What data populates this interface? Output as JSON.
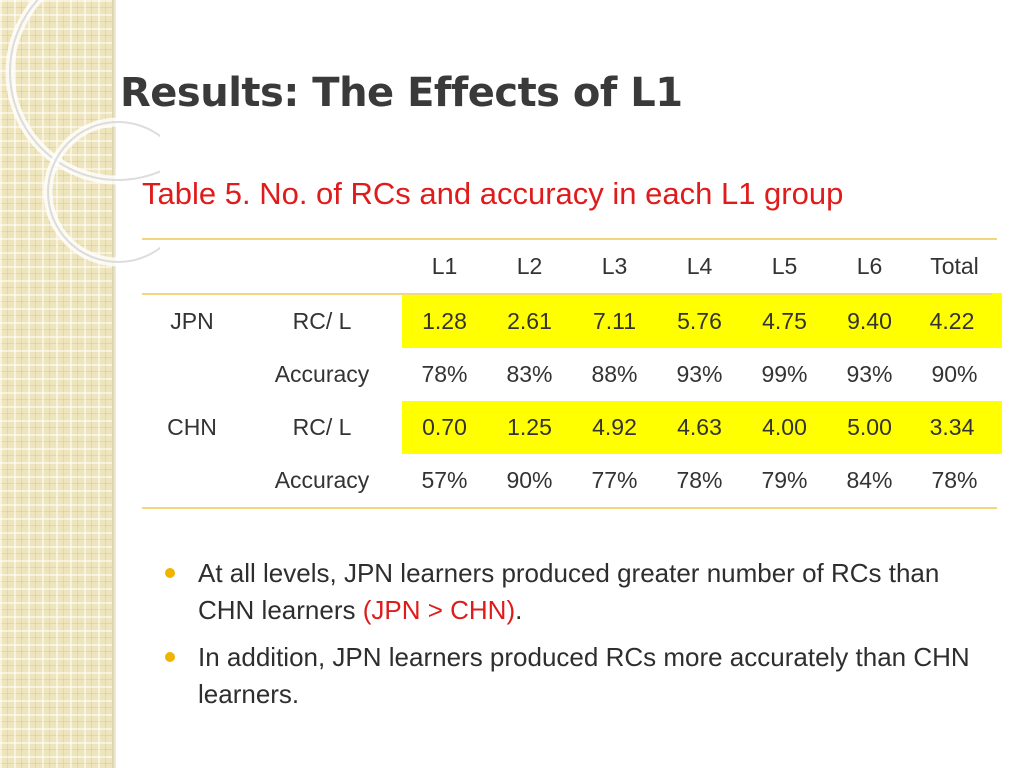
{
  "title": "Results: The Effects of L1",
  "table": {
    "caption": "Table 5. No. of RCs and accuracy in each L1 group",
    "headers": [
      "",
      "",
      "L1",
      "L2",
      "L3",
      "L4",
      "L5",
      "L6",
      "Total"
    ],
    "rows": [
      {
        "group": "JPN",
        "measure": "RC/ L",
        "values": [
          "1.28",
          "2.61",
          "7.11",
          "5.76",
          "4.75",
          "9.40",
          "4.22"
        ],
        "highlight": true
      },
      {
        "group": "",
        "measure": "Accuracy",
        "values": [
          "78%",
          "83%",
          "88%",
          "93%",
          "99%",
          "93%",
          "90%"
        ],
        "highlight": false
      },
      {
        "group": "CHN",
        "measure": "RC/ L",
        "values": [
          "0.70",
          "1.25",
          "4.92",
          "4.63",
          "4.00",
          "5.00",
          "3.34"
        ],
        "highlight": true
      },
      {
        "group": "",
        "measure": "Accuracy",
        "values": [
          "57%",
          "90%",
          "77%",
          "78%",
          "79%",
          "84%",
          "78%"
        ],
        "highlight": false
      }
    ]
  },
  "bullets": [
    {
      "text": "At all levels, JPN learners produced greater number of RCs than CHN learners ",
      "highlight": "(JPN > CHN)",
      "suffix": "."
    },
    {
      "text": "In addition,  JPN learners produced RCs more accurately than CHN learners.",
      "highlight": "",
      "suffix": ""
    }
  ],
  "colors": {
    "accent": "#e01b1b",
    "highlight": "#ffff00",
    "rule": "#f3d77c",
    "bullet": "#f0b400",
    "background_band": "#efe5bd"
  }
}
